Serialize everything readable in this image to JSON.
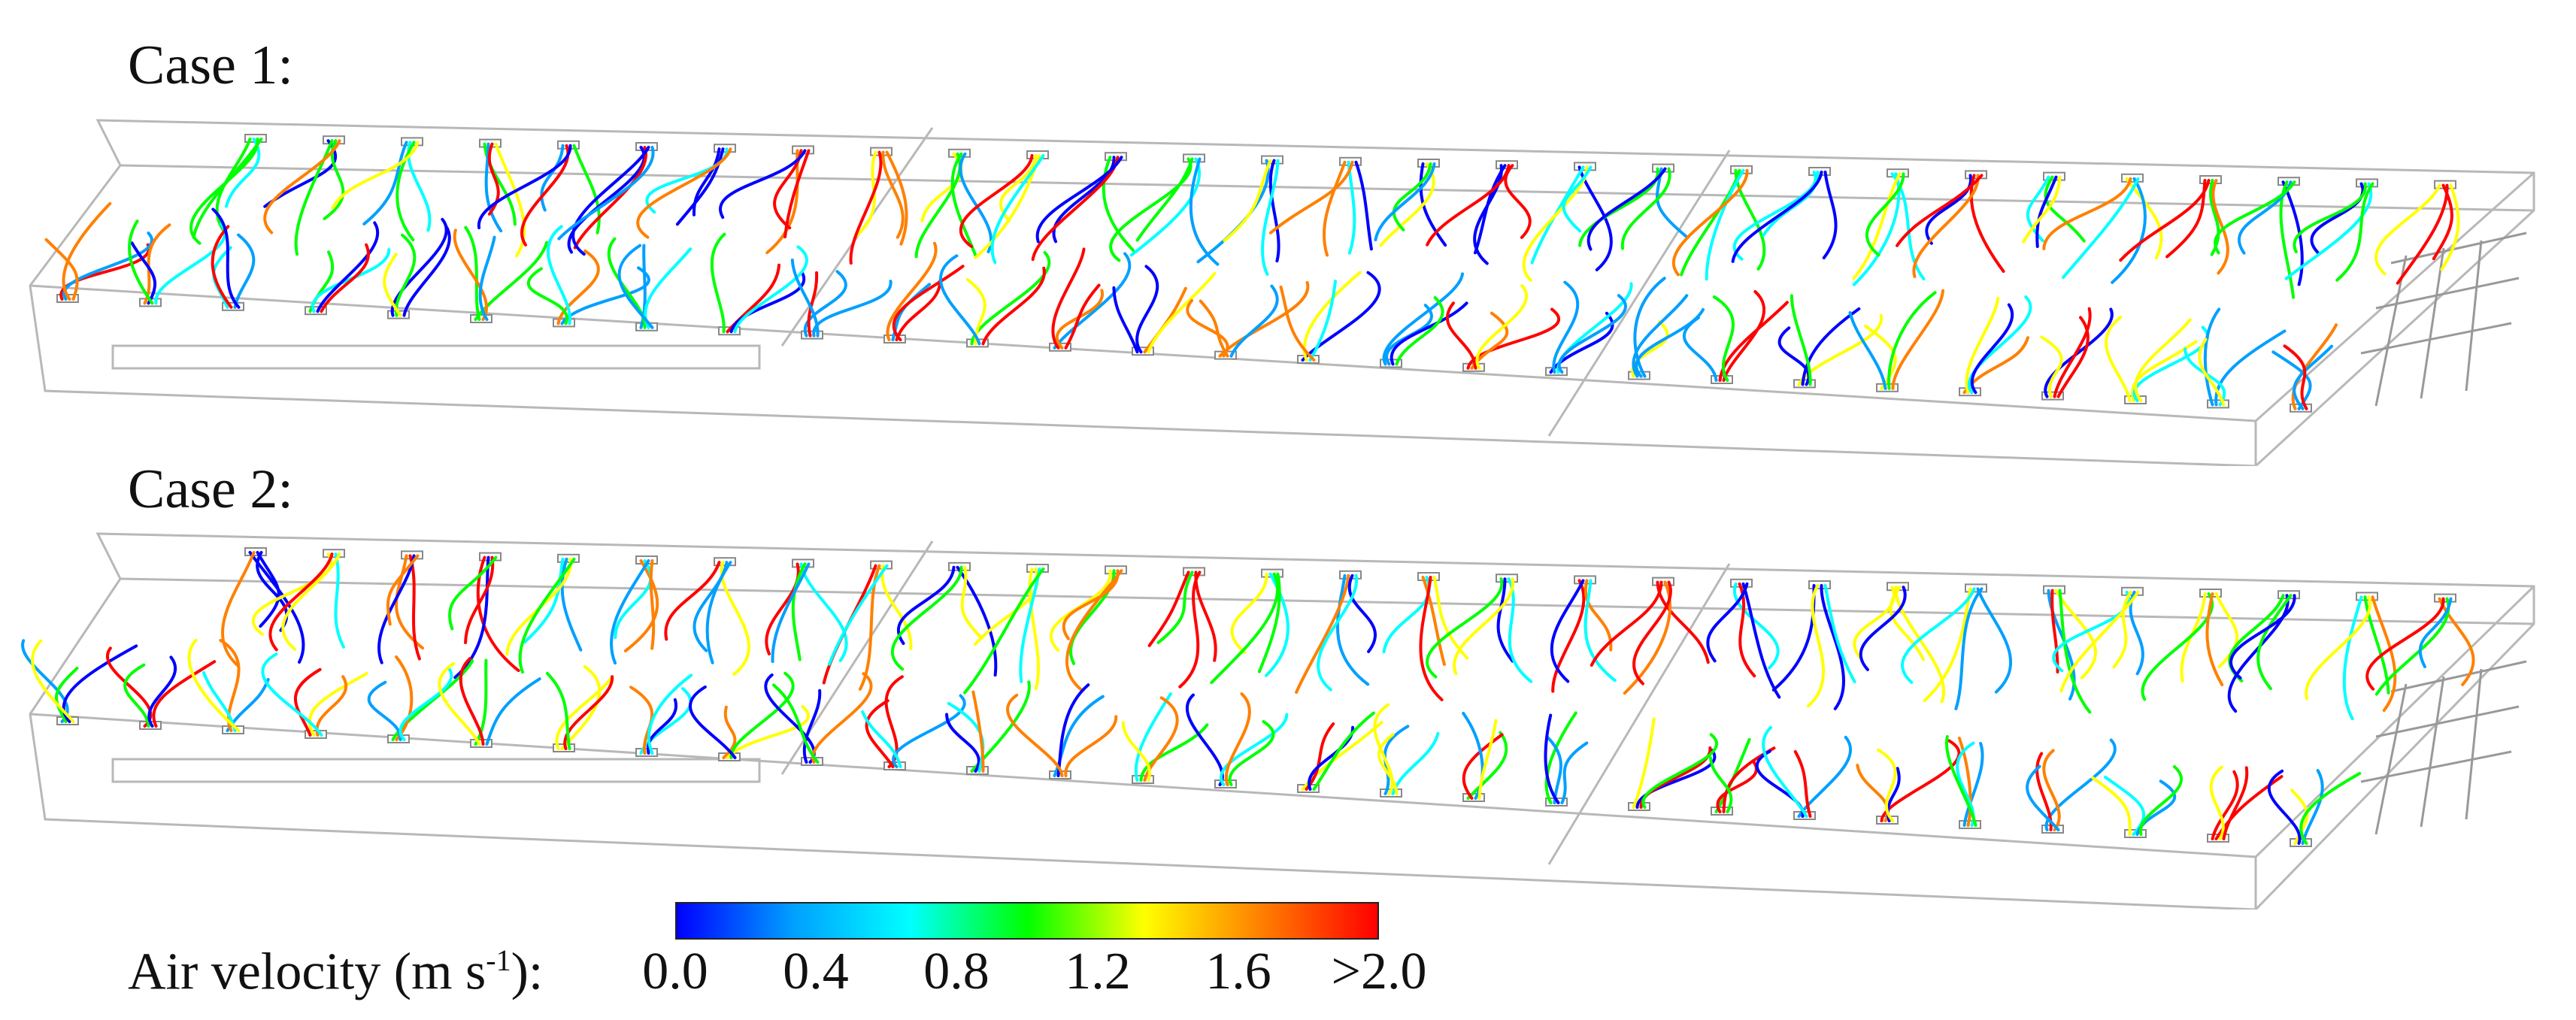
{
  "case1": {
    "label": "Case 1:"
  },
  "case2": {
    "label": "Case 2:"
  },
  "legend": {
    "label_prefix": "Air velocity (m s",
    "label_exponent": "-1",
    "label_suffix": "):",
    "ticks": [
      "0.0",
      "0.4",
      "0.8",
      "1.2",
      "1.6",
      ">2.0"
    ],
    "range": [
      0.0,
      2.0
    ],
    "colors": [
      "#0000ff",
      "#00a0ff",
      "#00ffff",
      "#00ff00",
      "#ffff00",
      "#ff8000",
      "#ff0000"
    ]
  }
}
